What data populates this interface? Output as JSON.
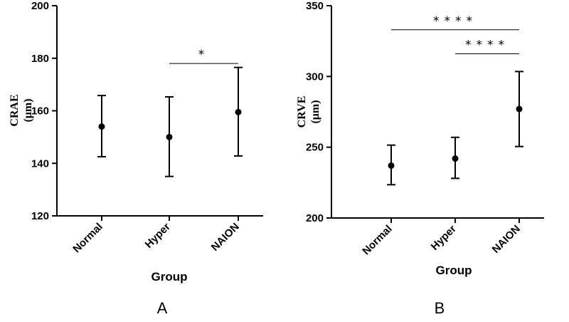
{
  "chart_data": [
    {
      "type": "scatter",
      "panel_label": "A",
      "categories": [
        "Normal",
        "Hyper",
        "NAION"
      ],
      "series": [
        {
          "values": [
            154,
            150,
            159.5
          ],
          "error_low": [
            142.5,
            135,
            142.8
          ],
          "error_high": [
            165.8,
            165.3,
            176.5
          ]
        }
      ],
      "xlabel": "Group",
      "ylabel_lines": [
        "CRAE",
        "(μm)"
      ],
      "ylim": [
        120,
        200
      ],
      "yticks": [
        "120",
        "140",
        "160",
        "180",
        "200"
      ],
      "annotations": [
        {
          "from": "Hyper",
          "to": "NAION",
          "y": 178,
          "text": "*"
        }
      ],
      "grid": false
    },
    {
      "type": "scatter",
      "panel_label": "B",
      "categories": [
        "Normal",
        "Hyper",
        "NAION"
      ],
      "series": [
        {
          "values": [
            237,
            242,
            277
          ],
          "error_low": [
            223.5,
            228,
            250.5
          ],
          "error_high": [
            251.5,
            257,
            303.5
          ]
        }
      ],
      "xlabel": "Group",
      "ylabel_lines": [
        "CRVE",
        "(μm)"
      ],
      "ylim": [
        200,
        350
      ],
      "yticks": [
        "200",
        "250",
        "300",
        "350"
      ],
      "annotations": [
        {
          "from": "Normal",
          "to": "NAION",
          "y": 333,
          "text": "****"
        },
        {
          "from": "Hyper",
          "to": "NAION",
          "y": 316,
          "text": "****"
        }
      ],
      "grid": false
    }
  ]
}
